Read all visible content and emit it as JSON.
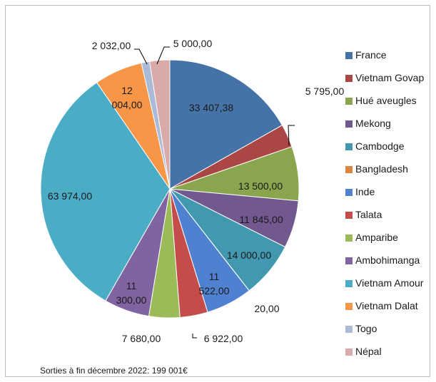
{
  "chart_data": {
    "type": "pie",
    "start_angle_deg": 0,
    "direction": "clockwise",
    "legend_position": "right",
    "slices": [
      {
        "name": "France",
        "value": 33407.38,
        "label": "33 407,38",
        "color": "#4572a7"
      },
      {
        "name": "Vietnam Govap",
        "value": 5795.0,
        "label": "5 795,00",
        "color": "#aa4643"
      },
      {
        "name": "Hué aveugles",
        "value": 13500.0,
        "label": "13 500,00",
        "color": "#89a54e"
      },
      {
        "name": "Mekong",
        "value": 11845.0,
        "label": "11 845,00",
        "color": "#71588f"
      },
      {
        "name": "Cambodge",
        "value": 14000.0,
        "label": "14 000,00",
        "color": "#4198af"
      },
      {
        "name": "Bangladesh",
        "value": 20.0,
        "label": "20,00",
        "color": "#db843d"
      },
      {
        "name": "Inde",
        "value": 11522.0,
        "label": "11 522,00",
        "label_lines": [
          "11",
          "522,00"
        ],
        "color": "#4f81d0"
      },
      {
        "name": "Talata",
        "value": 6922.0,
        "label": "6 922,00",
        "color": "#c44d4b"
      },
      {
        "name": "Amparibe",
        "value": 7680.0,
        "label": "7 680,00",
        "color": "#9bbb59"
      },
      {
        "name": "Ambohimanga",
        "value": 11300.0,
        "label": "11 300,00",
        "label_lines": [
          "11",
          "300,00"
        ],
        "color": "#8064a2"
      },
      {
        "name": "Vietnam Amour",
        "value": 63974.0,
        "label": "63 974,00",
        "color": "#4bacc6"
      },
      {
        "name": "Vietnam Dalat",
        "value": 12004.0,
        "label": "12 004,00",
        "label_lines": [
          "12",
          "004,00"
        ],
        "color": "#f79646"
      },
      {
        "name": "Togo",
        "value": 2032.0,
        "label": "2 032,00",
        "color": "#aabad7"
      },
      {
        "name": "Népal",
        "value": 5000.0,
        "label": "5 000,00",
        "color": "#d9aaa9"
      }
    ],
    "footnote": "Sorties à fin décembre 2022: 199 001€"
  }
}
